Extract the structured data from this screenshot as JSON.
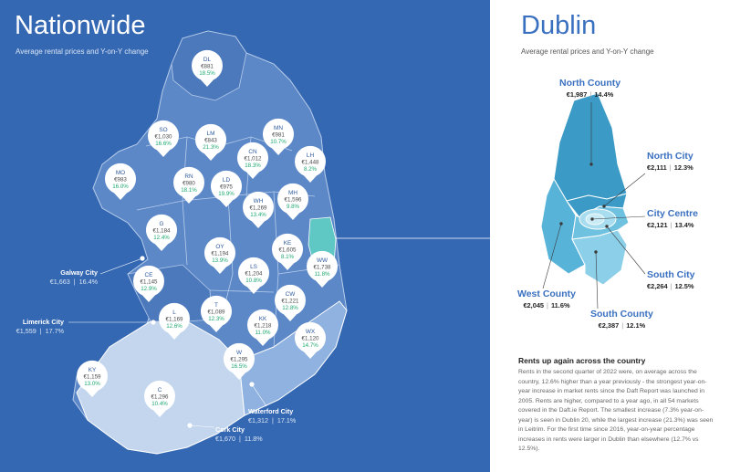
{
  "nationwide": {
    "title": "Nationwide",
    "subtitle": "Average rental prices and Y-on-Y change",
    "counties": [
      {
        "code": "DL",
        "price": "€881",
        "change": "18.5%"
      },
      {
        "code": "SO",
        "price": "€1,030",
        "change": "16.6%"
      },
      {
        "code": "LM",
        "price": "€843",
        "change": "21.3%"
      },
      {
        "code": "MN",
        "price": "€981",
        "change": "10.7%"
      },
      {
        "code": "CN",
        "price": "€1,012",
        "change": "18.3%"
      },
      {
        "code": "LH",
        "price": "€1,448",
        "change": "8.2%"
      },
      {
        "code": "MO",
        "price": "€983",
        "change": "16.0%"
      },
      {
        "code": "RN",
        "price": "€980",
        "change": "18.1%"
      },
      {
        "code": "LD",
        "price": "€975",
        "change": "19.9%"
      },
      {
        "code": "MH",
        "price": "€1,596",
        "change": "9.8%"
      },
      {
        "code": "WH",
        "price": "€1,269",
        "change": "13.4%"
      },
      {
        "code": "G",
        "price": "€1,184",
        "change": "12.4%"
      },
      {
        "code": "KE",
        "price": "€1,605",
        "change": "8.1%"
      },
      {
        "code": "OY",
        "price": "€1,194",
        "change": "13.9%"
      },
      {
        "code": "WW",
        "price": "€1,738",
        "change": "11.8%"
      },
      {
        "code": "LS",
        "price": "€1,204",
        "change": "10.8%"
      },
      {
        "code": "CE",
        "price": "€1,145",
        "change": "12.9%"
      },
      {
        "code": "CW",
        "price": "€1,221",
        "change": "12.8%"
      },
      {
        "code": "T",
        "price": "€1,089",
        "change": "12.3%"
      },
      {
        "code": "KK",
        "price": "€1,218",
        "change": "11.0%"
      },
      {
        "code": "L",
        "price": "€1,169",
        "change": "12.6%"
      },
      {
        "code": "WX",
        "price": "€1,120",
        "change": "14.7%"
      },
      {
        "code": "W",
        "price": "€1,295",
        "change": "16.5%"
      },
      {
        "code": "KY",
        "price": "€1,159",
        "change": "13.0%"
      },
      {
        "code": "C",
        "price": "€1,296",
        "change": "10.4%"
      }
    ],
    "cities": [
      {
        "name": "Galway City",
        "price": "€1,663",
        "change": "16.4%"
      },
      {
        "name": "Limerick City",
        "price": "€1,559",
        "change": "17.7%"
      },
      {
        "name": "Waterford City",
        "price": "€1,312",
        "change": "17.1%"
      },
      {
        "name": "Cork City",
        "price": "€1,670",
        "change": "11.8%"
      }
    ]
  },
  "dublin": {
    "title": "Dublin",
    "subtitle": "Average rental prices and Y-on-Y change",
    "areas": [
      {
        "name": "North County",
        "price": "€1,987",
        "change": "14.4%"
      },
      {
        "name": "North City",
        "price": "€2,111",
        "change": "12.3%"
      },
      {
        "name": "City Centre",
        "price": "€2,121",
        "change": "13.4%"
      },
      {
        "name": "South City",
        "price": "€2,264",
        "change": "12.5%"
      },
      {
        "name": "West County",
        "price": "€2,045",
        "change": "11.6%"
      },
      {
        "name": "South County",
        "price": "€2,387",
        "change": "12.1%"
      }
    ]
  },
  "summary": {
    "heading": "Rents up again across the country",
    "body": "Rents in the second quarter of 2022 were, on average across the country, 12.6% higher than a year previously - the strongest year-on-year increase in market rents since the Daft Report was launched in 2005. Rents are higher, compared to a year ago, in all 54 markets covered in the Daft.ie Report. The smallest increase (7.3% year-on-year) is seen in Dublin 20, while the largest increase (21.3%) was seen in Leitrim. For the first time since 2016, year-on-year percentage increases in rents were larger in Dublin than elsewhere (12.7% vs 12.5%)."
  },
  "colors": {
    "background": "#3568b3",
    "map_fill": "#5c88c8",
    "map_light": "#c3d6ee",
    "dublin_accent": "#5fc7c4",
    "pct_green": "#1ea870",
    "dublin_title": "#3a70c0"
  }
}
